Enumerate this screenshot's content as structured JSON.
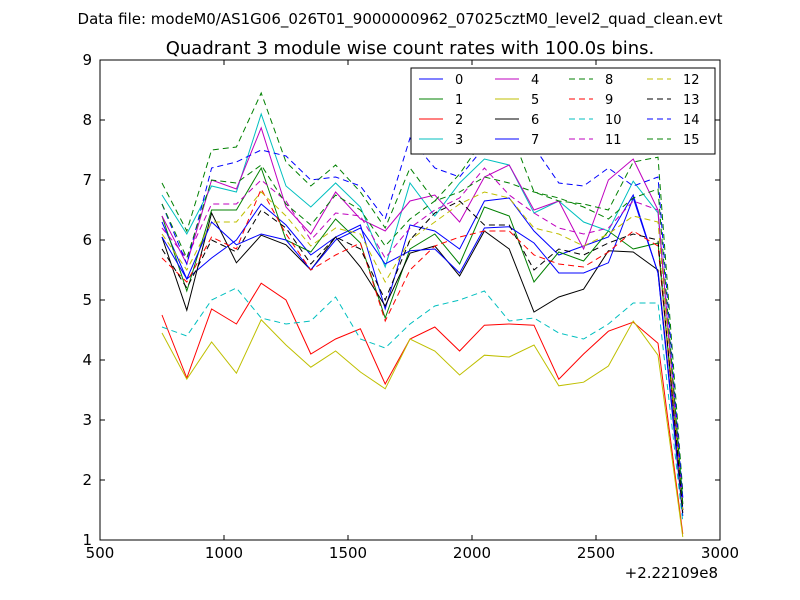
{
  "suptitle": "Data file: modeM0/AS1G06_026T01_9000000962_07025cztM0_level2_quad_clean.evt",
  "chart_data": {
    "type": "line",
    "title": "Quadrant 3 module wise count rates with 100.0s bins.",
    "xlabel": "",
    "ylabel": "",
    "xlim": [
      500,
      3000
    ],
    "ylim": [
      1,
      9
    ],
    "x_offset_label": "+2.22109e8",
    "xticks": [
      500,
      1000,
      1500,
      2000,
      2500,
      3000
    ],
    "yticks": [
      1,
      2,
      3,
      4,
      5,
      6,
      7,
      8,
      9
    ],
    "x": [
      750,
      850,
      950,
      1050,
      1150,
      1250,
      1350,
      1450,
      1550,
      1650,
      1750,
      1850,
      1950,
      2050,
      2150,
      2250,
      2350,
      2450,
      2550,
      2650,
      2750,
      2850
    ],
    "series": [
      {
        "name": "0",
        "color": "#0000ff",
        "dashed": false,
        "values": [
          6.3,
          5.35,
          5.7,
          6.0,
          6.6,
          6.25,
          5.75,
          6.05,
          6.25,
          4.85,
          6.25,
          6.15,
          5.85,
          6.65,
          6.7,
          6.15,
          5.75,
          5.9,
          6.05,
          6.75,
          5.45,
          1.4
        ]
      },
      {
        "name": "1",
        "color": "#008000",
        "dashed": false,
        "values": [
          6.4,
          5.15,
          6.5,
          6.5,
          7.2,
          6.0,
          5.8,
          6.35,
          5.95,
          4.7,
          5.85,
          6.1,
          5.6,
          6.55,
          6.4,
          5.3,
          5.8,
          5.65,
          6.15,
          5.85,
          5.95,
          1.5
        ]
      },
      {
        "name": "2",
        "color": "#ff0000",
        "dashed": false,
        "values": [
          4.75,
          3.7,
          4.85,
          4.6,
          5.28,
          5.0,
          4.1,
          4.35,
          4.52,
          3.6,
          4.35,
          4.55,
          4.15,
          4.58,
          4.6,
          4.58,
          3.68,
          4.1,
          4.48,
          4.63,
          4.28,
          1.1
        ]
      },
      {
        "name": "3",
        "color": "#00bfbf",
        "dashed": false,
        "values": [
          6.75,
          6.1,
          6.9,
          6.8,
          8.1,
          6.9,
          6.55,
          6.95,
          6.55,
          5.55,
          6.95,
          6.4,
          6.95,
          7.35,
          7.25,
          6.45,
          6.65,
          6.3,
          6.15,
          6.98,
          6.45,
          1.7
        ]
      },
      {
        "name": "4",
        "color": "#bf00bf",
        "dashed": false,
        "values": [
          6.4,
          5.6,
          7.0,
          6.85,
          7.87,
          6.55,
          6.1,
          6.8,
          6.35,
          6.15,
          6.65,
          6.75,
          6.3,
          7.05,
          7.25,
          6.5,
          6.65,
          5.85,
          7.0,
          7.35,
          6.5,
          1.6
        ]
      },
      {
        "name": "5",
        "color": "#bfbf00",
        "dashed": false,
        "values": [
          4.45,
          3.68,
          4.3,
          3.78,
          4.67,
          4.25,
          3.88,
          4.15,
          3.8,
          3.52,
          4.35,
          4.15,
          3.75,
          4.08,
          4.05,
          4.25,
          3.57,
          3.63,
          3.9,
          4.65,
          4.08,
          1.05
        ]
      },
      {
        "name": "6",
        "color": "#000000",
        "dashed": false,
        "values": [
          6.05,
          4.83,
          6.45,
          5.62,
          6.08,
          5.92,
          5.5,
          6.05,
          5.55,
          4.9,
          5.78,
          5.9,
          5.4,
          6.15,
          5.85,
          4.8,
          5.05,
          5.18,
          5.82,
          5.8,
          5.5,
          1.45
        ]
      },
      {
        "name": "7",
        "color": "#0000ff",
        "dashed": false,
        "values": [
          6.05,
          5.35,
          6.3,
          5.92,
          6.1,
          6.0,
          5.5,
          6.0,
          6.2,
          5.6,
          5.82,
          5.85,
          5.45,
          6.2,
          6.22,
          5.95,
          5.45,
          5.45,
          5.62,
          6.7,
          5.45,
          1.5
        ]
      },
      {
        "name": "8",
        "color": "#008000",
        "dashed": true,
        "values": [
          6.95,
          6.15,
          7.5,
          7.55,
          8.45,
          7.3,
          6.9,
          7.25,
          6.8,
          6.2,
          7.2,
          6.65,
          7.1,
          7.7,
          7.88,
          6.8,
          6.65,
          6.6,
          6.5,
          7.3,
          7.38,
          1.8
        ]
      },
      {
        "name": "9",
        "color": "#ff0000",
        "dashed": true,
        "values": [
          5.7,
          5.3,
          6.05,
          5.85,
          6.85,
          6.1,
          5.5,
          5.75,
          5.95,
          4.65,
          5.5,
          5.9,
          6.05,
          6.15,
          6.15,
          5.75,
          5.6,
          5.55,
          5.8,
          6.15,
          5.9,
          1.5
        ]
      },
      {
        "name": "10",
        "color": "#00bfbf",
        "dashed": true,
        "values": [
          4.55,
          4.4,
          5.0,
          5.2,
          4.7,
          4.6,
          4.65,
          5.05,
          4.35,
          4.2,
          4.6,
          4.9,
          5.0,
          5.15,
          4.65,
          4.7,
          4.45,
          4.35,
          4.6,
          4.95,
          4.95,
          1.3
        ]
      },
      {
        "name": "11",
        "color": "#bf00bf",
        "dashed": true,
        "values": [
          6.2,
          5.7,
          6.6,
          6.6,
          7.0,
          6.65,
          6.0,
          6.45,
          6.4,
          5.7,
          6.2,
          6.5,
          6.7,
          7.2,
          6.75,
          6.45,
          6.2,
          6.1,
          6.2,
          6.65,
          6.5,
          1.6
        ]
      },
      {
        "name": "12",
        "color": "#bfbf00",
        "dashed": true,
        "values": [
          6.1,
          5.5,
          6.3,
          6.3,
          6.8,
          6.4,
          5.9,
          6.2,
          6.1,
          5.3,
          6.0,
          6.3,
          6.6,
          6.8,
          6.7,
          6.2,
          6.1,
          5.9,
          6.1,
          6.4,
          6.3,
          1.5
        ]
      },
      {
        "name": "13",
        "color": "#000000",
        "dashed": true,
        "values": [
          5.85,
          5.2,
          6.0,
          5.8,
          6.5,
          6.2,
          5.6,
          6.05,
          5.85,
          5.0,
          6.0,
          6.45,
          6.65,
          6.25,
          6.25,
          5.5,
          5.85,
          5.75,
          5.95,
          6.1,
          6.0,
          1.5
        ]
      },
      {
        "name": "14",
        "color": "#0000ff",
        "dashed": true,
        "values": [
          6.6,
          5.6,
          7.2,
          7.3,
          7.5,
          7.4,
          7.0,
          7.05,
          6.9,
          6.35,
          7.7,
          7.2,
          7.05,
          7.55,
          7.55,
          7.55,
          6.95,
          6.9,
          7.2,
          6.9,
          7.05,
          1.7
        ]
      },
      {
        "name": "15",
        "color": "#008000",
        "dashed": true,
        "values": [
          6.6,
          5.7,
          7.0,
          6.95,
          7.25,
          6.6,
          6.25,
          6.75,
          6.5,
          5.9,
          6.35,
          6.65,
          6.8,
          7.05,
          6.95,
          6.8,
          6.7,
          6.55,
          6.35,
          6.7,
          6.85,
          1.6
        ]
      }
    ]
  }
}
